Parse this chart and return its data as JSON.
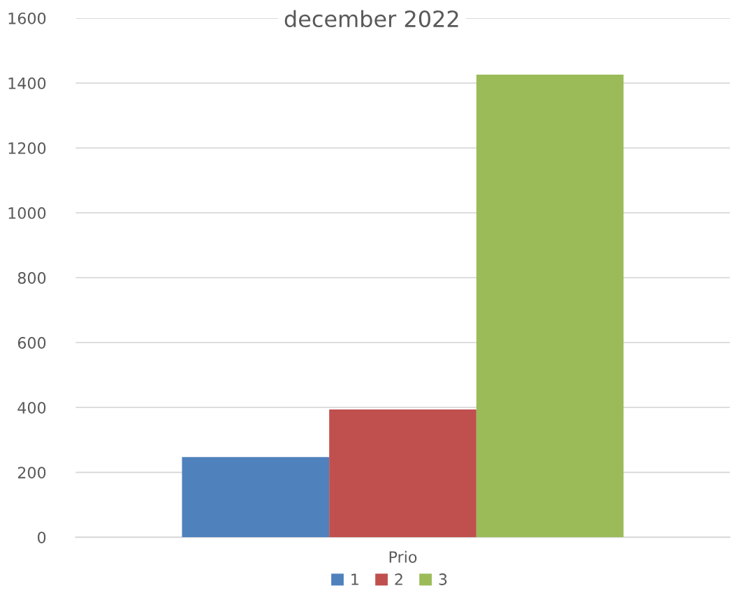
{
  "chart_data": {
    "type": "bar",
    "title": "december 2022",
    "categories": [
      "Prio"
    ],
    "series": [
      {
        "name": "1",
        "color": "#4f81bd",
        "values": [
          247
        ]
      },
      {
        "name": "2",
        "color": "#c0504d",
        "values": [
          394
        ]
      },
      {
        "name": "3",
        "color": "#9bbb59",
        "values": [
          1426
        ]
      }
    ],
    "ylim": [
      0,
      1600
    ],
    "yticks": [
      0,
      200,
      400,
      600,
      800,
      1000,
      1200,
      1400,
      1600
    ],
    "grid": "y",
    "legend": "bottom"
  }
}
